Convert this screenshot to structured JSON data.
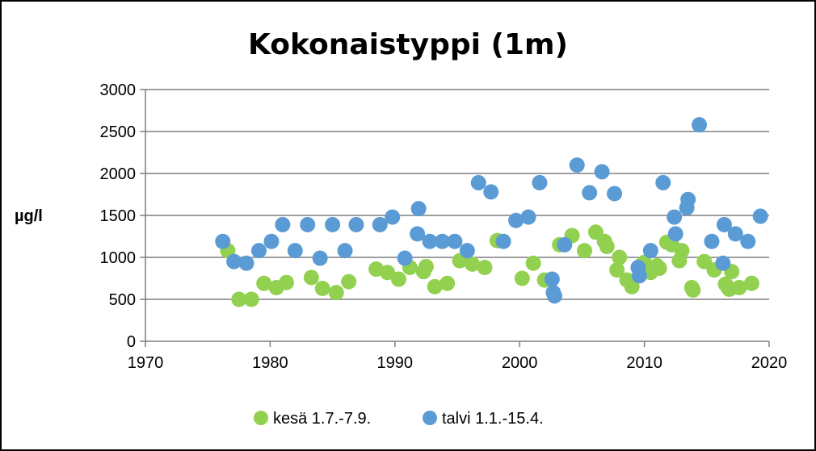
{
  "chart_data": {
    "type": "scatter",
    "title": "Kokonaistyppi (1m)",
    "xlabel": "",
    "ylabel": "µg/l",
    "xlim": [
      1970,
      2020
    ],
    "ylim": [
      0,
      3000
    ],
    "x_ticks": [
      1970,
      1980,
      1990,
      2000,
      2010,
      2020
    ],
    "y_ticks": [
      0,
      500,
      1000,
      1500,
      2000,
      2500,
      3000
    ],
    "grid": "horizontal",
    "legend_position": "bottom",
    "series": [
      {
        "name": "kesä 1.7.-7.9.",
        "color": "#92D050",
        "points": [
          [
            1976.6,
            1080
          ],
          [
            1977.5,
            500
          ],
          [
            1978.5,
            500
          ],
          [
            1979.5,
            690
          ],
          [
            1980.5,
            640
          ],
          [
            1981.3,
            700
          ],
          [
            1983.3,
            760
          ],
          [
            1984.2,
            630
          ],
          [
            1985.3,
            580
          ],
          [
            1986.3,
            710
          ],
          [
            1988.5,
            860
          ],
          [
            1989.4,
            820
          ],
          [
            1990.3,
            740
          ],
          [
            1991.2,
            880
          ],
          [
            1992.3,
            830
          ],
          [
            1992.5,
            890
          ],
          [
            1993.2,
            650
          ],
          [
            1994.2,
            690
          ],
          [
            1995.2,
            960
          ],
          [
            1996.2,
            920
          ],
          [
            1997.2,
            880
          ],
          [
            1998.2,
            1200
          ],
          [
            2000.2,
            750
          ],
          [
            2001.1,
            930
          ],
          [
            2002.0,
            730
          ],
          [
            2003.2,
            1150
          ],
          [
            2004.2,
            1260
          ],
          [
            2005.2,
            1080
          ],
          [
            2006.1,
            1300
          ],
          [
            2006.8,
            1190
          ],
          [
            2007.0,
            1130
          ],
          [
            2007.8,
            850
          ],
          [
            2008.0,
            1000
          ],
          [
            2008.6,
            730
          ],
          [
            2009.0,
            650
          ],
          [
            2009.7,
            900
          ],
          [
            2010.0,
            940
          ],
          [
            2010.5,
            820
          ],
          [
            2011.0,
            900
          ],
          [
            2011.2,
            870
          ],
          [
            2011.8,
            1180
          ],
          [
            2012.2,
            1150
          ],
          [
            2012.8,
            960
          ],
          [
            2013.0,
            1080
          ],
          [
            2013.8,
            640
          ],
          [
            2013.9,
            610
          ],
          [
            2014.8,
            950
          ],
          [
            2015.6,
            850
          ],
          [
            2016.5,
            680
          ],
          [
            2016.7,
            640
          ],
          [
            2016.8,
            620
          ],
          [
            2017.0,
            830
          ],
          [
            2017.6,
            640
          ],
          [
            2018.6,
            690
          ]
        ]
      },
      {
        "name": "talvi 1.1.-15.4.",
        "color": "#5B9BD5",
        "points": [
          [
            1976.2,
            1190
          ],
          [
            1977.1,
            950
          ],
          [
            1978.1,
            930
          ],
          [
            1979.1,
            1080
          ],
          [
            1980.1,
            1190
          ],
          [
            1981.0,
            1390
          ],
          [
            1982.0,
            1080
          ],
          [
            1983.0,
            1390
          ],
          [
            1984.0,
            990
          ],
          [
            1985.0,
            1390
          ],
          [
            1986.0,
            1080
          ],
          [
            1986.9,
            1390
          ],
          [
            1988.8,
            1390
          ],
          [
            1989.8,
            1480
          ],
          [
            1990.8,
            990
          ],
          [
            1991.8,
            1280
          ],
          [
            1991.9,
            1580
          ],
          [
            1992.8,
            1190
          ],
          [
            1993.8,
            1190
          ],
          [
            1994.8,
            1190
          ],
          [
            1995.8,
            1080
          ],
          [
            1996.7,
            1890
          ],
          [
            1997.7,
            1780
          ],
          [
            1998.7,
            1190
          ],
          [
            1999.7,
            1440
          ],
          [
            2000.7,
            1480
          ],
          [
            2001.6,
            1890
          ],
          [
            2002.6,
            740
          ],
          [
            2002.7,
            580
          ],
          [
            2002.8,
            540
          ],
          [
            2003.6,
            1150
          ],
          [
            2004.6,
            2100
          ],
          [
            2005.6,
            1770
          ],
          [
            2006.6,
            2020
          ],
          [
            2007.6,
            1760
          ],
          [
            2009.5,
            880
          ],
          [
            2009.6,
            780
          ],
          [
            2010.5,
            1080
          ],
          [
            2011.5,
            1890
          ],
          [
            2012.4,
            1480
          ],
          [
            2012.5,
            1280
          ],
          [
            2013.4,
            1590
          ],
          [
            2013.5,
            1690
          ],
          [
            2014.4,
            2580
          ],
          [
            2015.4,
            1190
          ],
          [
            2016.3,
            930
          ],
          [
            2016.4,
            1390
          ],
          [
            2017.3,
            1280
          ],
          [
            2018.3,
            1190
          ],
          [
            2019.3,
            1490
          ]
        ]
      }
    ]
  }
}
